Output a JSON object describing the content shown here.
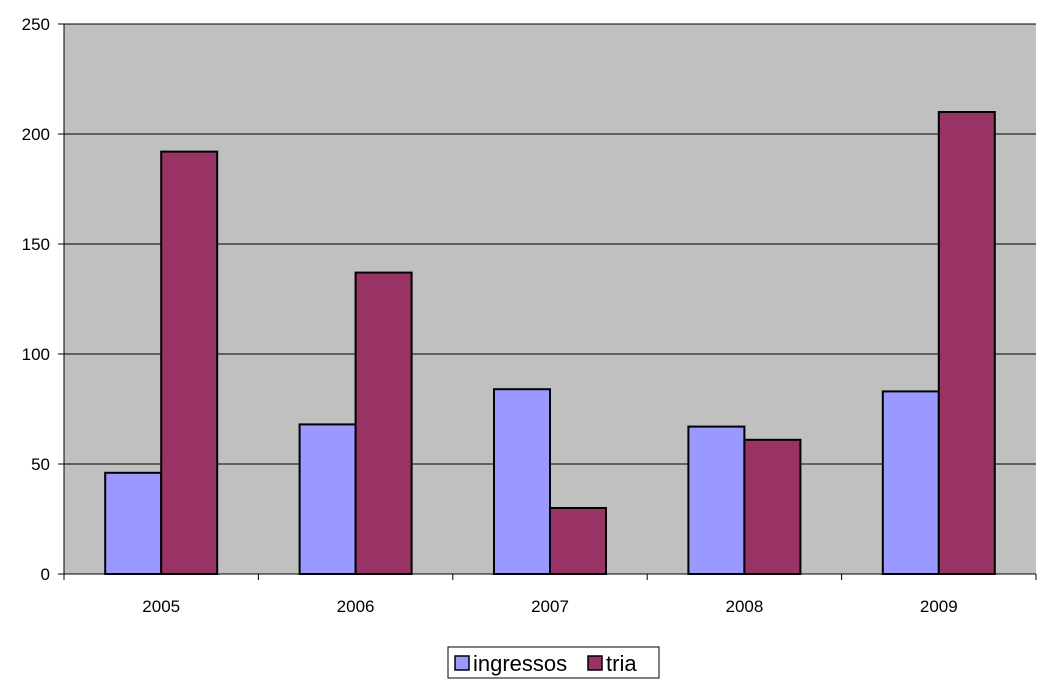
{
  "chart_data": {
    "type": "bar",
    "categories": [
      "2005",
      "2006",
      "2007",
      "2008",
      "2009"
    ],
    "series": [
      {
        "name": "ingressos",
        "values": [
          46,
          68,
          84,
          67,
          83
        ],
        "color": "#9999ff"
      },
      {
        "name": "tria",
        "values": [
          192,
          137,
          30,
          61,
          210
        ],
        "color": "#993366"
      }
    ],
    "title": "",
    "xlabel": "",
    "ylabel": "",
    "ylim": [
      0,
      250
    ],
    "yticks": [
      "0",
      "50",
      "100",
      "150",
      "200",
      "250"
    ],
    "grid": true,
    "plot_background": "#c0c0c0",
    "legend_position": "bottom"
  }
}
